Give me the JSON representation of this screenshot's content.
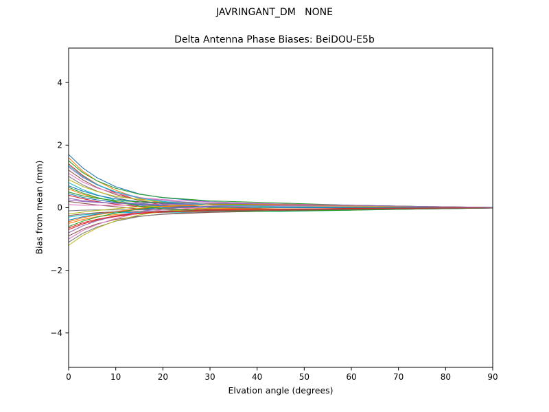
{
  "figure": {
    "suptitle": "JAVRINGANT_DM   NONE",
    "title": "Delta Antenna Phase Biases: BeiDOU-E5b",
    "xlabel": "Elvation angle (degrees)",
    "ylabel": "Bias from mean (mm)"
  },
  "chart_data": {
    "type": "line",
    "suptitle": "JAVRINGANT_DM   NONE",
    "title": "Delta Antenna Phase Biases: BeiDOU-E5b",
    "xlabel": "Elvation angle (degrees)",
    "ylabel": "Bias from mean (mm)",
    "xlim": [
      0,
      90
    ],
    "ylim": [
      -5.1,
      5.1
    ],
    "xticks": [
      0,
      10,
      20,
      30,
      40,
      50,
      60,
      70,
      80,
      90
    ],
    "yticks": [
      -4,
      -2,
      0,
      2,
      4
    ],
    "grid": false,
    "legend": "none",
    "description": "Many per-satellite bias traces spread between about -1.2 and +1.7 mm at 0 degrees elevation and converge toward 0 mm by 90 degrees",
    "x": [
      0,
      3,
      6,
      10,
      15,
      20,
      30,
      45,
      60,
      75,
      90
    ],
    "series": [
      [
        1.7,
        1.27,
        0.96,
        0.67,
        0.44,
        0.32,
        0.19,
        0.11,
        0.06,
        0.03,
        0.01
      ],
      [
        1.6,
        1.17,
        0.86,
        0.56,
        0.29,
        0.15,
        0.0,
        -0.05,
        -0.05,
        -0.02,
        0.0
      ],
      [
        1.5,
        1.12,
        0.86,
        0.62,
        0.43,
        0.33,
        0.22,
        0.15,
        0.08,
        0.04,
        0.01
      ],
      [
        1.4,
        1.03,
        0.75,
        0.47,
        0.23,
        0.08,
        -0.05,
        -0.09,
        -0.07,
        -0.04,
        -0.01
      ],
      [
        1.3,
        0.97,
        0.73,
        0.5,
        0.33,
        0.23,
        0.13,
        0.07,
        0.04,
        0.02,
        0.0
      ],
      [
        1.2,
        0.89,
        0.65,
        0.42,
        0.23,
        0.12,
        0.01,
        -0.04,
        -0.03,
        -0.02,
        0.0
      ],
      [
        1.1,
        0.82,
        0.63,
        0.46,
        0.32,
        0.26,
        0.18,
        0.12,
        0.07,
        0.04,
        0.01
      ],
      [
        1.0,
        0.73,
        0.53,
        0.33,
        0.15,
        0.05,
        -0.05,
        -0.08,
        -0.06,
        -0.03,
        -0.01
      ],
      [
        0.9,
        0.68,
        0.52,
        0.36,
        0.26,
        0.19,
        0.13,
        0.08,
        0.05,
        0.02,
        0.0
      ],
      [
        0.8,
        0.58,
        0.41,
        0.24,
        0.08,
        -0.02,
        -0.1,
        -0.12,
        -0.08,
        -0.04,
        -0.01
      ],
      [
        0.7,
        0.53,
        0.4,
        0.28,
        0.19,
        0.14,
        0.09,
        0.06,
        0.03,
        0.02,
        0.0
      ],
      [
        0.6,
        0.43,
        0.32,
        0.2,
        0.09,
        0.03,
        -0.03,
        -0.04,
        -0.04,
        -0.02,
        0.0
      ],
      [
        0.5,
        0.38,
        0.3,
        0.23,
        0.19,
        0.17,
        0.14,
        0.11,
        0.07,
        0.03,
        0.01
      ],
      [
        0.4,
        0.29,
        0.2,
        0.11,
        0.03,
        -0.03,
        -0.07,
        -0.08,
        -0.05,
        -0.03,
        0.0
      ],
      [
        0.3,
        0.23,
        0.18,
        0.14,
        0.12,
        0.1,
        0.09,
        0.06,
        0.04,
        0.02,
        0.0
      ],
      [
        0.2,
        0.14,
        0.09,
        0.03,
        -0.04,
        -0.07,
        -0.1,
        -0.1,
        -0.07,
        -0.03,
        -0.01
      ],
      [
        0.1,
        0.08,
        0.08,
        0.08,
        0.08,
        0.09,
        0.1,
        0.08,
        0.05,
        0.03,
        0.0
      ],
      [
        -0.1,
        -0.08,
        -0.07,
        -0.07,
        -0.07,
        -0.07,
        -0.08,
        -0.06,
        -0.04,
        -0.02,
        0.0
      ],
      [
        -0.2,
        -0.14,
        -0.09,
        -0.03,
        0.03,
        0.06,
        0.09,
        0.09,
        0.06,
        0.03,
        0.01
      ],
      [
        -0.3,
        -0.23,
        -0.19,
        -0.16,
        -0.15,
        -0.15,
        -0.14,
        -0.11,
        -0.07,
        -0.04,
        -0.01
      ],
      [
        -0.4,
        -0.29,
        -0.21,
        -0.13,
        -0.05,
        0.0,
        0.04,
        0.05,
        0.04,
        0.02,
        0.0
      ],
      [
        -0.5,
        -0.38,
        -0.29,
        -0.22,
        -0.17,
        -0.14,
        -0.11,
        -0.08,
        -0.05,
        -0.02,
        0.0
      ],
      [
        -0.6,
        -0.43,
        -0.3,
        -0.17,
        -0.04,
        0.04,
        0.1,
        0.11,
        0.08,
        0.04,
        0.01
      ],
      [
        -0.7,
        -0.52,
        -0.4,
        -0.28,
        -0.19,
        -0.14,
        -0.09,
        -0.06,
        -0.03,
        -0.02,
        0.0
      ],
      [
        -0.8,
        -0.58,
        -0.42,
        -0.26,
        -0.12,
        -0.03,
        0.05,
        0.07,
        0.05,
        0.03,
        0.0
      ],
      [
        -0.9,
        -0.68,
        -0.52,
        -0.37,
        -0.27,
        -0.21,
        -0.15,
        -0.1,
        -0.06,
        -0.03,
        -0.01
      ],
      [
        -1.0,
        -0.73,
        -0.54,
        -0.34,
        -0.17,
        -0.07,
        0.02,
        0.05,
        0.04,
        0.02,
        0.0
      ],
      [
        -1.1,
        -0.82,
        -0.62,
        -0.43,
        -0.28,
        -0.2,
        -0.12,
        -0.06,
        -0.04,
        -0.02,
        0.0
      ],
      [
        -1.2,
        -0.89,
        -0.65,
        -0.42,
        -0.23,
        -0.12,
        -0.01,
        0.03,
        0.03,
        0.02,
        0.0
      ],
      [
        1.35,
        1.0,
        0.74,
        0.51,
        0.31,
        0.2,
        0.09,
        0.03,
        0.01,
        0.01,
        0.0
      ],
      [
        0.45,
        0.33,
        0.25,
        0.17,
        0.1,
        0.06,
        0.02,
        0.0,
        0.0,
        0.0,
        0.0
      ],
      [
        -0.45,
        -0.32,
        -0.23,
        -0.13,
        -0.02,
        0.04,
        0.09,
        0.1,
        0.07,
        0.03,
        0.01
      ],
      [
        0.65,
        0.47,
        0.33,
        0.19,
        0.05,
        -0.03,
        -0.1,
        -0.11,
        -0.08,
        -0.04,
        -0.01
      ],
      [
        -0.65,
        -0.48,
        -0.37,
        -0.26,
        -0.17,
        -0.13,
        -0.07,
        -0.05,
        -0.02,
        -0.01,
        0.0
      ],
      [
        0.25,
        0.2,
        0.17,
        0.14,
        0.15,
        0.15,
        0.14,
        0.12,
        0.08,
        0.04,
        0.01
      ],
      [
        -0.25,
        -0.2,
        -0.16,
        -0.13,
        -0.12,
        -0.11,
        -0.1,
        -0.08,
        -0.05,
        -0.03,
        -0.01
      ]
    ],
    "colors": [
      "#1f77b4",
      "#ff7f0e",
      "#2ca02c",
      "#d62728",
      "#9467bd",
      "#8c564b",
      "#e377c2",
      "#7f7f7f",
      "#bcbd22",
      "#17becf"
    ],
    "axis_color": "#000000",
    "background_color": "#ffffff"
  }
}
